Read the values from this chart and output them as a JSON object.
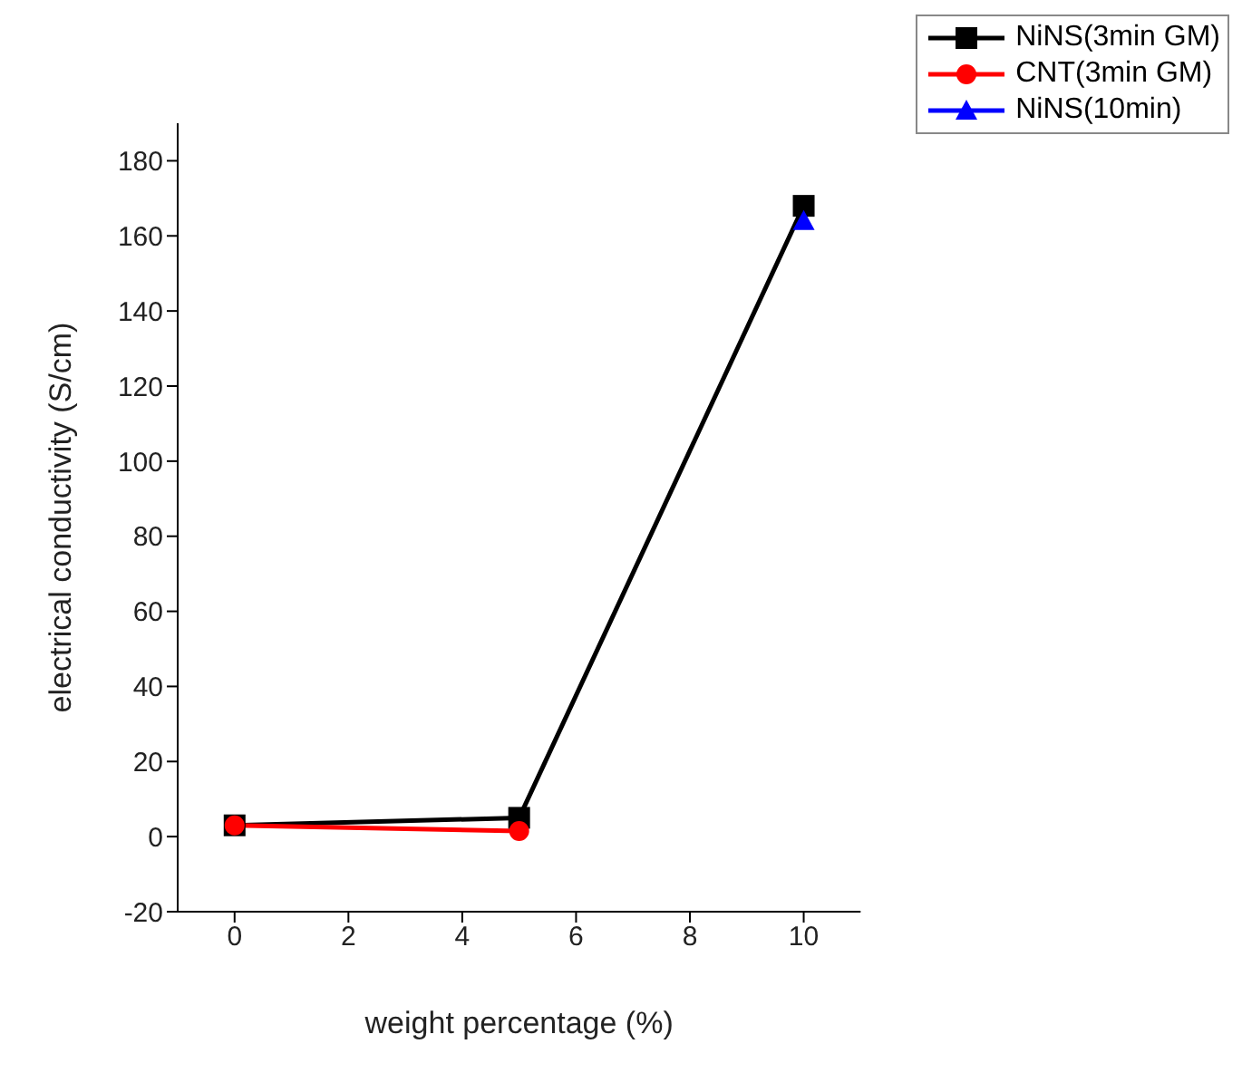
{
  "chart_data": {
    "type": "line",
    "xlabel": "weight percentage (%)",
    "ylabel": "electrical conductivity (S/cm)",
    "xlim": [
      -1,
      11
    ],
    "xticks": [
      0,
      2,
      4,
      6,
      8,
      10
    ],
    "ylim": [
      -20,
      190
    ],
    "yticks": [
      -20,
      0,
      20,
      40,
      60,
      80,
      100,
      120,
      140,
      160,
      180
    ],
    "grid": false,
    "legend": "top right",
    "line_style": "solid",
    "series": [
      {
        "name": "NiNS(3min GM)",
        "color": "#000000",
        "marker": "square",
        "x": [
          0,
          5,
          10
        ],
        "values": [
          3,
          5,
          168
        ]
      },
      {
        "name": "CNT(3min GM)",
        "color": "#ff0000",
        "marker": "circle",
        "x": [
          0,
          5
        ],
        "values": [
          3,
          1.5
        ]
      },
      {
        "name": "NiNS(10min)",
        "color": "#0000ff",
        "marker": "triangle",
        "x": [
          10
        ],
        "values": [
          164
        ]
      }
    ]
  }
}
